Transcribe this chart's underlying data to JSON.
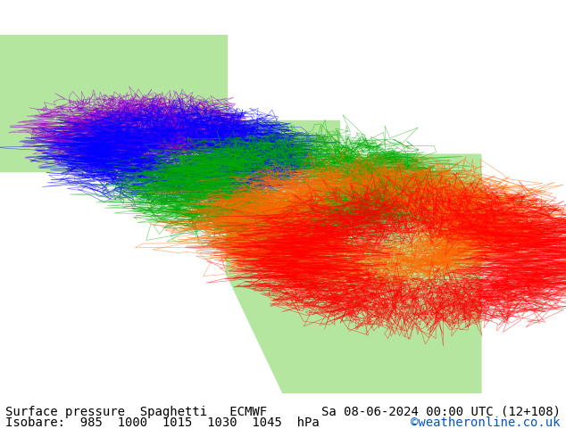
{
  "title_left": "Surface pressure  Spaghetti   ECMWF",
  "title_right": "Sa 08-06-2024 00:00 UTC (12+108)",
  "subtitle": "Isobare:  985  1000  1015  1030  1045  hPa",
  "credit": "©weatheronline.co.uk",
  "credit_color": "#0055cc",
  "bg_color": "#ffffff",
  "map_land_color": "#b5e6a0",
  "map_ocean_color": "#ffffff",
  "bottom_bar_color": "#e8e8e8",
  "title_fontsize": 10,
  "subtitle_fontsize": 10,
  "isobar_colors": {
    "985": "#9900cc",
    "1000": "#0000ff",
    "1015": "#00aa00",
    "1030": "#ff6600",
    "1045": "#ff0000"
  },
  "figsize": [
    6.34,
    4.9
  ],
  "dpi": 100
}
